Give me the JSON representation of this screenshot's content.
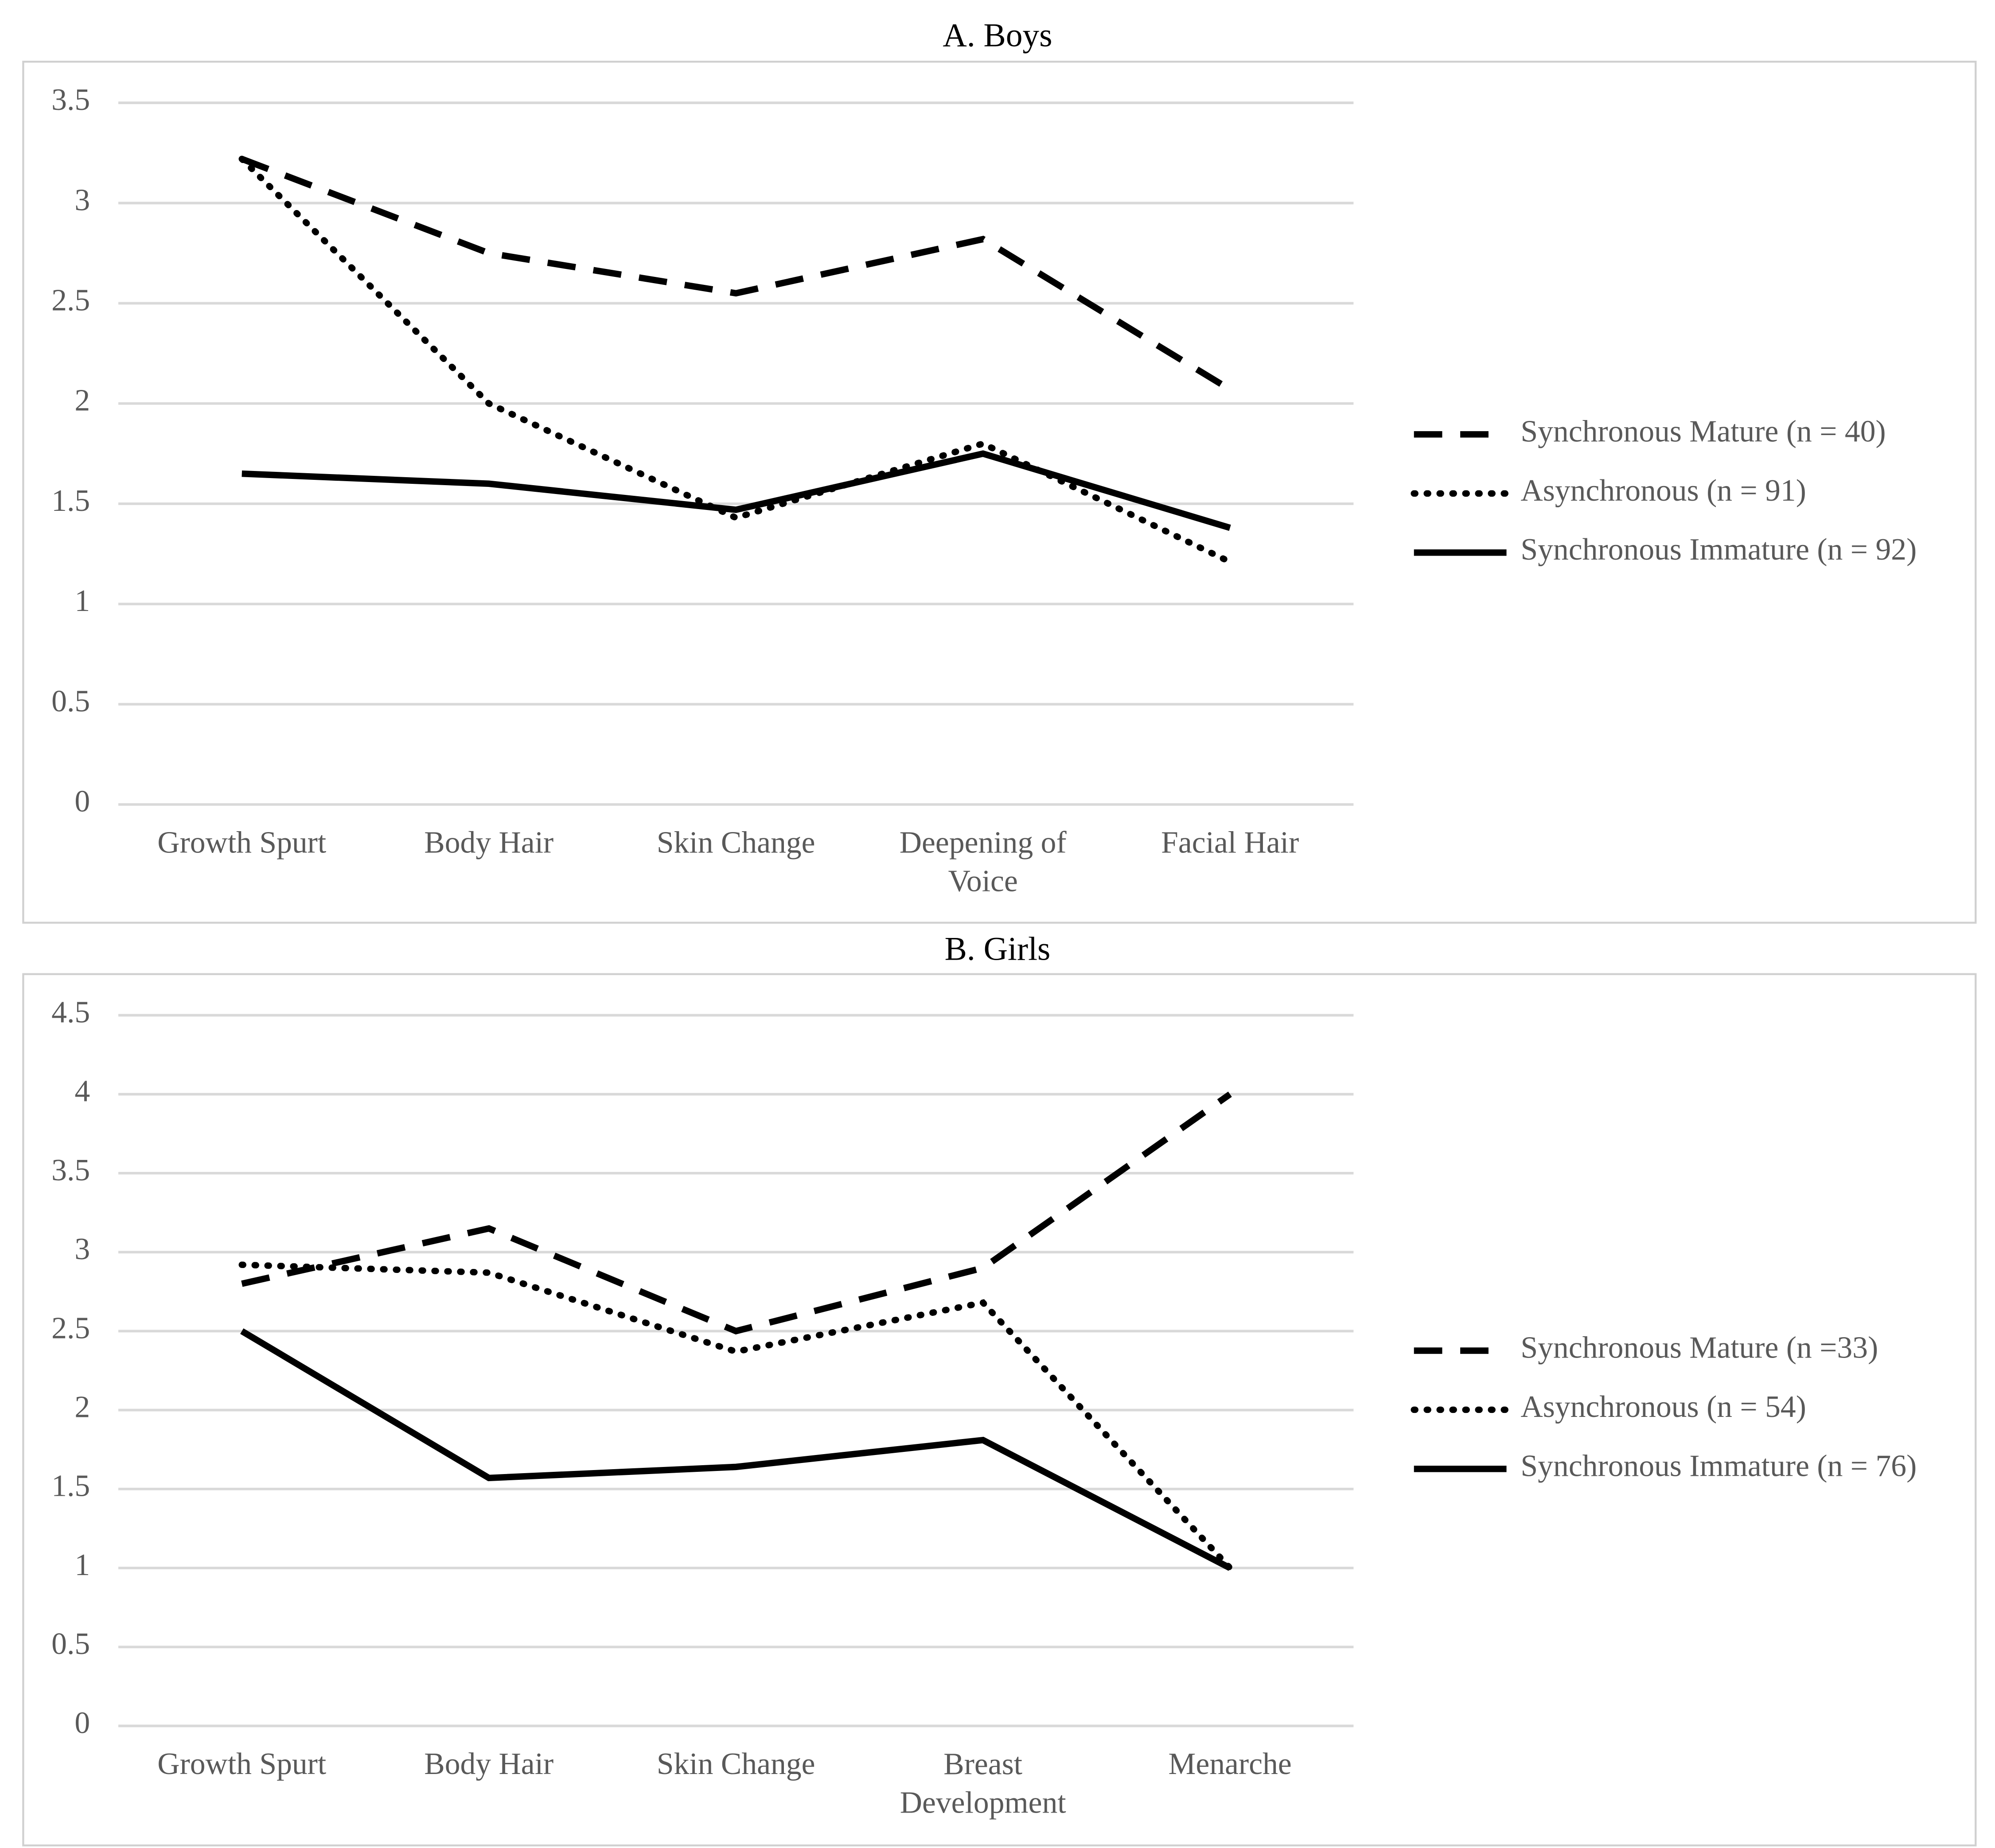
{
  "chart_data": [
    {
      "type": "line",
      "title": "A. Boys",
      "categories": [
        "Growth Spurt",
        "Body Hair",
        "Skin Change",
        "Deepening of Voice",
        "Facial Hair"
      ],
      "series": [
        {
          "name": "Synchronous Mature (n = 40)",
          "color": "#000000",
          "dash": "dashed",
          "values": [
            3.22,
            2.75,
            2.55,
            2.82,
            2.07
          ]
        },
        {
          "name": "Asynchronous (n = 91)",
          "color": "#000000",
          "dash": "dotted",
          "values": [
            3.22,
            2.0,
            1.43,
            1.8,
            1.21
          ]
        },
        {
          "name": "Synchronous Immature (n = 92)",
          "color": "#000000",
          "dash": "solid",
          "values": [
            1.65,
            1.6,
            1.47,
            1.75,
            1.38
          ]
        }
      ],
      "ylim": [
        0,
        3.5
      ],
      "yticks": [
        0,
        0.5,
        1,
        1.5,
        2,
        2.5,
        3,
        3.5
      ],
      "grid": true,
      "legend": "right"
    },
    {
      "type": "line",
      "title": "B. Girls",
      "categories": [
        "Growth Spurt",
        "Body Hair",
        "Skin Change",
        "Breast Development",
        "Menarche"
      ],
      "series": [
        {
          "name": "Synchronous Mature (n =33)",
          "color": "#000000",
          "dash": "dashed",
          "values": [
            2.8,
            3.15,
            2.5,
            2.9,
            4.0
          ]
        },
        {
          "name": "Asynchronous (n = 54)",
          "color": "#000000",
          "dash": "dotted",
          "values": [
            2.92,
            2.87,
            2.37,
            2.68,
            1.0
          ]
        },
        {
          "name": "Synchronous Immature (n = 76)",
          "color": "#000000",
          "dash": "solid",
          "values": [
            2.5,
            1.57,
            1.64,
            1.81,
            1.0
          ]
        }
      ],
      "ylim": [
        0,
        4.5
      ],
      "yticks": [
        0,
        0.5,
        1,
        1.5,
        2,
        2.5,
        3,
        3.5,
        4,
        4.5
      ],
      "grid": true,
      "legend": "right"
    }
  ]
}
